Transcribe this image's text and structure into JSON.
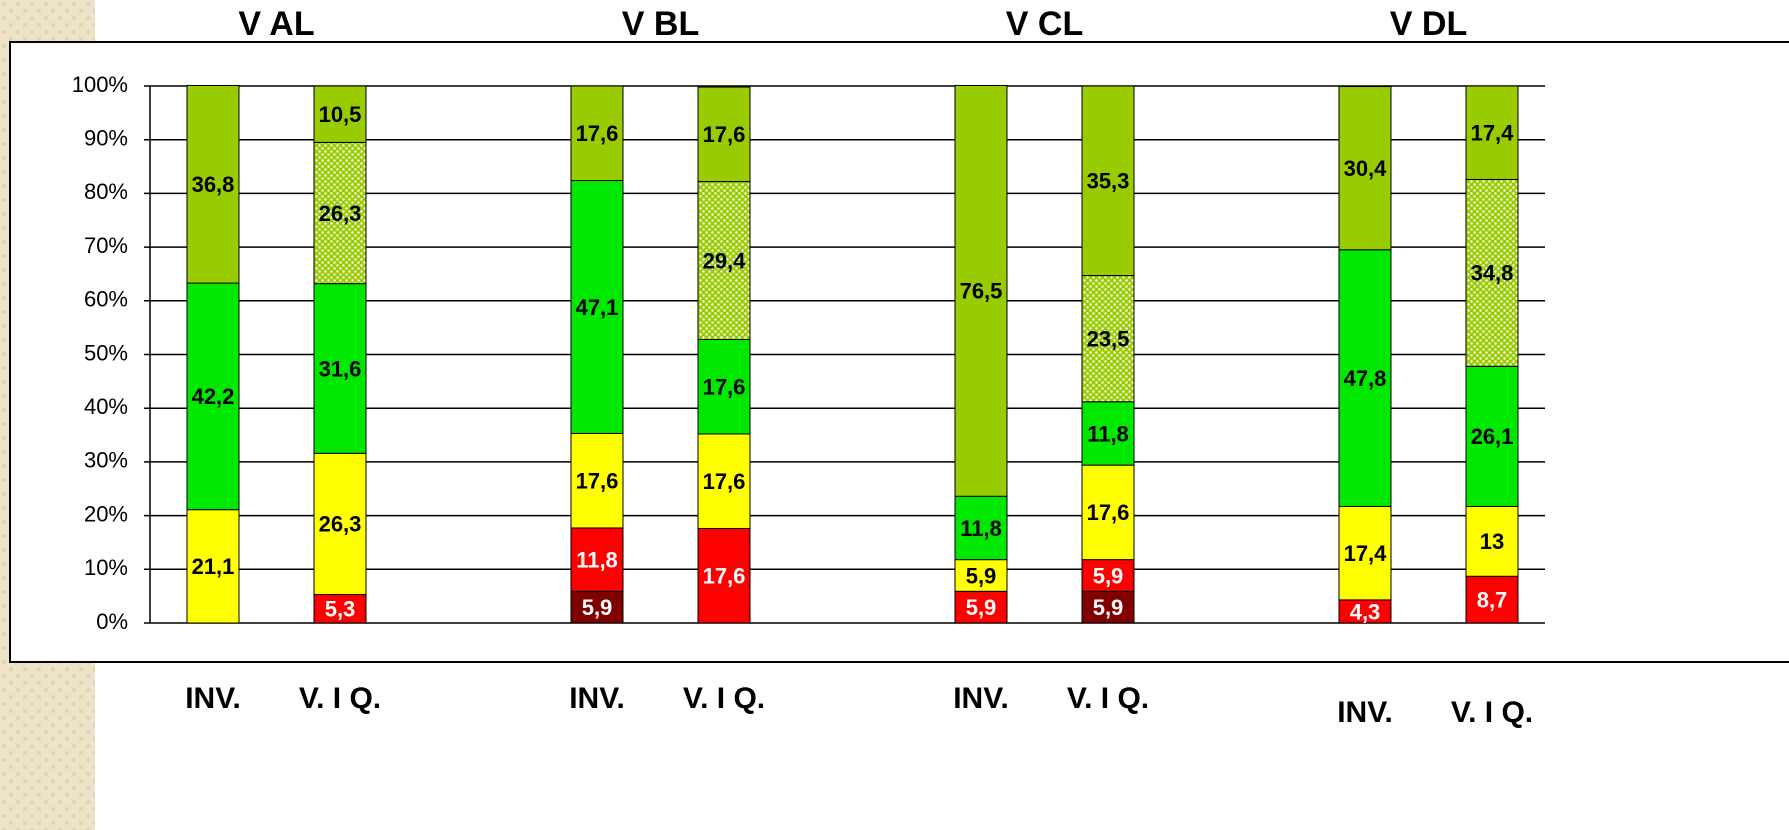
{
  "chart_data": {
    "type": "stacked_bar",
    "groups": [
      "V AL",
      "V BL",
      "V CL",
      "V DL"
    ],
    "categories": [
      "INV.",
      "V. I Q.",
      "INV.",
      "V. I Q.",
      "INV.",
      "V. I Q.",
      "INV.",
      "V. I Q."
    ],
    "ylim": [
      0,
      100
    ],
    "yticks": [
      {
        "value": 0,
        "label": "0%"
      },
      {
        "value": 10,
        "label": "10%"
      },
      {
        "value": 20,
        "label": "20%"
      },
      {
        "value": 30,
        "label": "30%"
      },
      {
        "value": 40,
        "label": "40%"
      },
      {
        "value": 50,
        "label": "50%"
      },
      {
        "value": 60,
        "label": "60%"
      },
      {
        "value": 70,
        "label": "70%"
      },
      {
        "value": 80,
        "label": "80%"
      },
      {
        "value": 90,
        "label": "90%"
      },
      {
        "value": 100,
        "label": "100%"
      }
    ],
    "grid": true,
    "series": [
      {
        "color": "#800000",
        "label_color": "#ffffff",
        "values": [
          null,
          null,
          5.9,
          null,
          null,
          5.9,
          null,
          null
        ],
        "value_labels": [
          null,
          null,
          "5,9",
          null,
          null,
          "5,9",
          null,
          null
        ]
      },
      {
        "color": "#ff0000",
        "label_color": "#ffffff",
        "values": [
          null,
          5.3,
          11.8,
          17.6,
          5.9,
          5.9,
          4.3,
          8.7
        ],
        "value_labels": [
          null,
          "5,3",
          "11,8",
          "17,6",
          "5,9",
          "5,9",
          "4,3",
          "8,7"
        ]
      },
      {
        "color": "#ffff00",
        "label_color": "#000000",
        "values": [
          21.1,
          26.3,
          17.6,
          17.6,
          5.9,
          17.6,
          17.4,
          13
        ],
        "value_labels": [
          "21,1",
          "26,3",
          "17,6",
          "17,6",
          "5,9",
          "17,6",
          "17,4",
          "13"
        ]
      },
      {
        "color": "#00e800",
        "label_color": "#000000",
        "values": [
          42.2,
          31.6,
          47.1,
          17.6,
          11.8,
          11.8,
          47.8,
          26.1
        ],
        "value_labels": [
          "42,2",
          "31,6",
          "47,1",
          "17,6",
          "11,8",
          "11,8",
          "47,8",
          "26,1"
        ]
      },
      {
        "color": "#99cc00",
        "pattern": "dots",
        "label_color": "#000000",
        "values": [
          null,
          26.3,
          null,
          29.4,
          null,
          23.5,
          null,
          34.8
        ],
        "value_labels": [
          null,
          "26,3",
          null,
          "29,4",
          null,
          "23,5",
          null,
          "34,8"
        ]
      },
      {
        "color": "#99cc00",
        "label_color": "#000000",
        "values": [
          36.8,
          10.5,
          17.6,
          17.6,
          76.5,
          35.3,
          30.4,
          17.4
        ],
        "value_labels": [
          "36,8",
          "10,5",
          "17,6",
          "17,6",
          "76,5",
          "35,3",
          "30,4",
          "17,4"
        ]
      }
    ]
  }
}
